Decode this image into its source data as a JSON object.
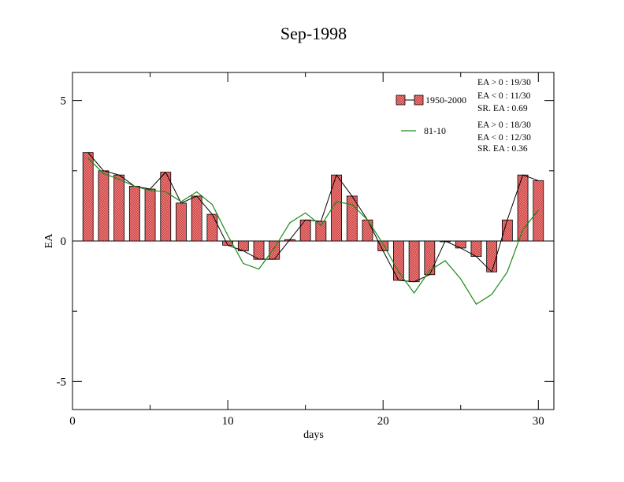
{
  "chart_data": {
    "type": "bar",
    "title": "Sep-1998",
    "xlabel": "days",
    "ylabel": "EA",
    "xlim": [
      0,
      31
    ],
    "ylim": [
      -6,
      6
    ],
    "x_ticks": [
      0,
      10,
      20,
      30
    ],
    "x_tick_labels": [
      "0",
      "10",
      "20",
      "30"
    ],
    "y_ticks": [
      -5,
      0,
      5
    ],
    "y_tick_labels": [
      "-5",
      "0",
      "5"
    ],
    "grid": false,
    "legend_position": "top-right",
    "x": [
      1,
      2,
      3,
      4,
      5,
      6,
      7,
      8,
      9,
      10,
      11,
      12,
      13,
      14,
      15,
      16,
      17,
      18,
      19,
      20,
      21,
      22,
      23,
      24,
      25,
      26,
      27,
      28,
      29,
      30
    ],
    "series": [
      {
        "name": "1950-2000",
        "kind": "bar",
        "color": "#e06666",
        "values": [
          3.15,
          2.5,
          2.35,
          1.95,
          1.85,
          2.45,
          1.35,
          1.6,
          0.95,
          -0.15,
          -0.35,
          -0.65,
          -0.65,
          0.05,
          0.75,
          0.7,
          2.35,
          1.6,
          0.75,
          -0.35,
          -1.4,
          -1.45,
          -1.2,
          0.0,
          -0.25,
          -0.55,
          -1.1,
          0.75,
          2.35,
          2.15
        ]
      },
      {
        "name": "81-10",
        "kind": "line",
        "color": "#1a8a1a",
        "values": [
          2.95,
          2.4,
          2.2,
          1.95,
          1.8,
          1.75,
          1.4,
          1.75,
          1.3,
          0.2,
          -0.8,
          -1.0,
          -0.25,
          0.65,
          1.0,
          0.55,
          1.4,
          1.3,
          0.75,
          -0.1,
          -1.1,
          -1.85,
          -1.05,
          -0.7,
          -1.35,
          -2.25,
          -1.9,
          -1.1,
          0.4,
          1.1
        ]
      }
    ],
    "bar_line_color": "#000000",
    "stats": [
      [
        "EA > 0 : 19/30",
        "EA < 0 : 11/30",
        "SR. EA :  0.69"
      ],
      [
        "EA > 0 : 18/30",
        "EA < 0 : 12/30",
        "SR. EA :  0.36"
      ]
    ]
  }
}
